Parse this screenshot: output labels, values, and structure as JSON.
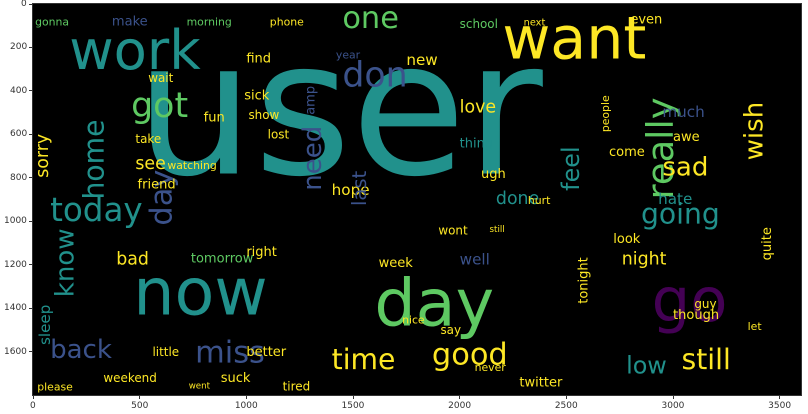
{
  "image": {
    "description_type": "matplotlib word cloud",
    "background": "#000000",
    "palette": [
      "#440154",
      "#3b528b",
      "#21918c",
      "#5ec962",
      "#fde725"
    ]
  },
  "axes": {
    "x_ticks": [
      "0",
      "500",
      "1000",
      "1500",
      "2000",
      "2500",
      "3000",
      "3500"
    ],
    "x_range": [
      0,
      3600
    ],
    "y_ticks": [
      "0",
      "200",
      "400",
      "600",
      "800",
      "1000",
      "1200",
      "1400",
      "1600"
    ],
    "y_range": [
      0,
      1800
    ]
  },
  "words": [
    {
      "text": "user",
      "x": 480,
      "y": 780,
      "size": 860,
      "color": "#21918c",
      "rot": 0
    },
    {
      "text": "work",
      "x": 170,
      "y": 300,
      "size": 250,
      "color": "#21918c",
      "rot": 0
    },
    {
      "text": "want",
      "x": 2200,
      "y": 250,
      "size": 270,
      "color": "#fde725",
      "rot": 0
    },
    {
      "text": "now",
      "x": 470,
      "y": 1430,
      "size": 300,
      "color": "#21918c",
      "rot": 0
    },
    {
      "text": "day",
      "x": 1600,
      "y": 1480,
      "size": 300,
      "color": "#5ec962",
      "rot": 0
    },
    {
      "text": "go",
      "x": 2900,
      "y": 1460,
      "size": 280,
      "color": "#440154",
      "rot": 0
    },
    {
      "text": "good",
      "x": 1870,
      "y": 1660,
      "size": 140,
      "color": "#fde725",
      "rot": 0
    },
    {
      "text": "time",
      "x": 1400,
      "y": 1680,
      "size": 130,
      "color": "#fde725",
      "rot": 0
    },
    {
      "text": "miss",
      "x": 760,
      "y": 1650,
      "size": 140,
      "color": "#3b528b",
      "rot": 0
    },
    {
      "text": "back",
      "x": 80,
      "y": 1630,
      "size": 120,
      "color": "#3b528b",
      "rot": 0
    },
    {
      "text": "still",
      "x": 3040,
      "y": 1680,
      "size": 130,
      "color": "#fde725",
      "rot": 0
    },
    {
      "text": "low",
      "x": 2780,
      "y": 1700,
      "size": 110,
      "color": "#21918c",
      "rot": 0
    },
    {
      "text": "one",
      "x": 1450,
      "y": 110,
      "size": 140,
      "color": "#5ec962",
      "rot": 0
    },
    {
      "text": "don",
      "x": 1450,
      "y": 380,
      "size": 160,
      "color": "#3b528b",
      "rot": 0
    },
    {
      "text": "got",
      "x": 460,
      "y": 520,
      "size": 160,
      "color": "#5ec962",
      "rot": 0
    },
    {
      "text": "home",
      "x": 330,
      "y": 900,
      "size": 130,
      "color": "#21918c",
      "rot": -90
    },
    {
      "text": "today",
      "x": 80,
      "y": 1000,
      "size": 150,
      "color": "#21918c",
      "rot": 0
    },
    {
      "text": "day",
      "x": 650,
      "y": 1020,
      "size": 140,
      "color": "#3b528b",
      "rot": -90
    },
    {
      "text": "really",
      "x": 3000,
      "y": 900,
      "size": 170,
      "color": "#5ec962",
      "rot": -90
    },
    {
      "text": "sad",
      "x": 2950,
      "y": 790,
      "size": 120,
      "color": "#fde725",
      "rot": 0
    },
    {
      "text": "going",
      "x": 2850,
      "y": 1010,
      "size": 130,
      "color": "#21918c",
      "rot": 0
    },
    {
      "text": "wish",
      "x": 3420,
      "y": 720,
      "size": 120,
      "color": "#fde725",
      "rot": -90
    },
    {
      "text": "feel",
      "x": 2560,
      "y": 860,
      "size": 110,
      "color": "#21918c",
      "rot": -90
    },
    {
      "text": "know",
      "x": 190,
      "y": 1350,
      "size": 120,
      "color": "#21918c",
      "rot": -90
    },
    {
      "text": "need",
      "x": 1350,
      "y": 860,
      "size": 120,
      "color": "#3b528b",
      "rot": -90
    },
    {
      "text": "bad",
      "x": 390,
      "y": 1200,
      "size": 80,
      "color": "#fde725",
      "rot": 0
    },
    {
      "text": "tomorrow",
      "x": 740,
      "y": 1190,
      "size": 60,
      "color": "#5ec962",
      "rot": 0
    },
    {
      "text": "night",
      "x": 2760,
      "y": 1200,
      "size": 80,
      "color": "#fde725",
      "rot": 0
    },
    {
      "text": "well",
      "x": 2000,
      "y": 1200,
      "size": 70,
      "color": "#3b528b",
      "rot": 0
    },
    {
      "text": "see",
      "x": 480,
      "y": 760,
      "size": 80,
      "color": "#fde725",
      "rot": 0
    },
    {
      "text": "love",
      "x": 2000,
      "y": 500,
      "size": 80,
      "color": "#fde725",
      "rot": 0
    },
    {
      "text": "much",
      "x": 2950,
      "y": 520,
      "size": 70,
      "color": "#3b528b",
      "rot": 0
    },
    {
      "text": "done",
      "x": 2170,
      "y": 920,
      "size": 80,
      "color": "#21918c",
      "rot": 0
    },
    {
      "text": "hate",
      "x": 2930,
      "y": 920,
      "size": 70,
      "color": "#21918c",
      "rot": 0
    },
    {
      "text": "hope",
      "x": 1400,
      "y": 880,
      "size": 70,
      "color": "#fde725",
      "rot": 0
    },
    {
      "text": "sorry",
      "x": 70,
      "y": 800,
      "size": 80,
      "color": "#fde725",
      "rot": -90
    },
    {
      "text": "sleep",
      "x": 80,
      "y": 1570,
      "size": 70,
      "color": "#21918c",
      "rot": -90
    },
    {
      "text": "friend",
      "x": 490,
      "y": 850,
      "size": 60,
      "color": "#fde725",
      "rot": 0
    },
    {
      "text": "thing",
      "x": 2000,
      "y": 660,
      "size": 60,
      "color": "#21918c",
      "rot": 0
    },
    {
      "text": "last",
      "x": 1560,
      "y": 930,
      "size": 90,
      "color": "#3b528b",
      "rot": -90
    },
    {
      "text": "make",
      "x": 370,
      "y": 100,
      "size": 60,
      "color": "#3b528b",
      "rot": 0
    },
    {
      "text": "morning",
      "x": 720,
      "y": 100,
      "size": 50,
      "color": "#5ec962",
      "rot": 0
    },
    {
      "text": "phone",
      "x": 1110,
      "y": 100,
      "size": 50,
      "color": "#fde725",
      "rot": 0
    },
    {
      "text": "school",
      "x": 2000,
      "y": 110,
      "size": 55,
      "color": "#5ec962",
      "rot": 0
    },
    {
      "text": "next",
      "x": 2300,
      "y": 100,
      "size": 45,
      "color": "#fde725",
      "rot": 0
    },
    {
      "text": "even",
      "x": 2800,
      "y": 90,
      "size": 60,
      "color": "#fde725",
      "rot": 0
    },
    {
      "text": "gonna",
      "x": 10,
      "y": 100,
      "size": 50,
      "color": "#5ec962",
      "rot": 0
    },
    {
      "text": "new",
      "x": 1750,
      "y": 280,
      "size": 70,
      "color": "#fde725",
      "rot": 0
    },
    {
      "text": "year",
      "x": 1420,
      "y": 250,
      "size": 50,
      "color": "#3b528b",
      "rot": 0
    },
    {
      "text": "find",
      "x": 1000,
      "y": 270,
      "size": 60,
      "color": "#fde725",
      "rot": 0
    },
    {
      "text": "sick",
      "x": 990,
      "y": 440,
      "size": 60,
      "color": "#fde725",
      "rot": 0
    },
    {
      "text": "wait",
      "x": 540,
      "y": 360,
      "size": 55,
      "color": "#fde725",
      "rot": 0
    },
    {
      "text": "fun",
      "x": 800,
      "y": 540,
      "size": 60,
      "color": "#fde725",
      "rot": 0
    },
    {
      "text": "show",
      "x": 1010,
      "y": 530,
      "size": 55,
      "color": "#fde725",
      "rot": 0
    },
    {
      "text": "lost",
      "x": 1100,
      "y": 620,
      "size": 55,
      "color": "#fde725",
      "rot": 0
    },
    {
      "text": "watching",
      "x": 630,
      "y": 760,
      "size": 50,
      "color": "#fde725",
      "rot": 0
    },
    {
      "text": "take",
      "x": 480,
      "y": 640,
      "size": 55,
      "color": "#fde725",
      "rot": 0
    },
    {
      "text": "ugh",
      "x": 2100,
      "y": 800,
      "size": 60,
      "color": "#fde725",
      "rot": 0
    },
    {
      "text": "come",
      "x": 2700,
      "y": 700,
      "size": 60,
      "color": "#fde725",
      "rot": 0
    },
    {
      "text": "people",
      "x": 2700,
      "y": 590,
      "size": 50,
      "color": "#fde725",
      "rot": -90
    },
    {
      "text": "awe",
      "x": 3000,
      "y": 630,
      "size": 60,
      "color": "#fde725",
      "rot": 0
    },
    {
      "text": "look",
      "x": 2720,
      "y": 1100,
      "size": 60,
      "color": "#fde725",
      "rot": 0
    },
    {
      "text": "wont",
      "x": 1900,
      "y": 1060,
      "size": 55,
      "color": "#fde725",
      "rot": 0
    },
    {
      "text": "week",
      "x": 1620,
      "y": 1210,
      "size": 60,
      "color": "#fde725",
      "rot": 0
    },
    {
      "text": "hurt",
      "x": 2320,
      "y": 920,
      "size": 50,
      "color": "#fde725",
      "rot": 0
    },
    {
      "text": "tonight",
      "x": 2600,
      "y": 1380,
      "size": 60,
      "color": "#fde725",
      "rot": -90
    },
    {
      "text": "though",
      "x": 3000,
      "y": 1450,
      "size": 60,
      "color": "#fde725",
      "rot": 0
    },
    {
      "text": "guy",
      "x": 3100,
      "y": 1400,
      "size": 55,
      "color": "#fde725",
      "rot": 0
    },
    {
      "text": "better",
      "x": 1000,
      "y": 1620,
      "size": 60,
      "color": "#fde725",
      "rot": 0
    },
    {
      "text": "little",
      "x": 560,
      "y": 1620,
      "size": 55,
      "color": "#fde725",
      "rot": 0
    },
    {
      "text": "weekend",
      "x": 330,
      "y": 1740,
      "size": 55,
      "color": "#fde725",
      "rot": 0
    },
    {
      "text": "suck",
      "x": 880,
      "y": 1740,
      "size": 60,
      "color": "#fde725",
      "rot": 0
    },
    {
      "text": "twitter",
      "x": 2280,
      "y": 1760,
      "size": 60,
      "color": "#fde725",
      "rot": 0
    },
    {
      "text": "please",
      "x": 20,
      "y": 1780,
      "size": 50,
      "color": "#fde725",
      "rot": 0
    },
    {
      "text": "went",
      "x": 730,
      "y": 1770,
      "size": 40,
      "color": "#fde725",
      "rot": 0
    },
    {
      "text": "tired",
      "x": 1170,
      "y": 1780,
      "size": 55,
      "color": "#fde725",
      "rot": 0
    },
    {
      "text": "never",
      "x": 2070,
      "y": 1690,
      "size": 50,
      "color": "#fde725",
      "rot": 0
    },
    {
      "text": "say",
      "x": 1910,
      "y": 1520,
      "size": 55,
      "color": "#fde725",
      "rot": 0
    },
    {
      "text": "nice",
      "x": 1730,
      "y": 1470,
      "size": 50,
      "color": "#fde725",
      "rot": 0
    },
    {
      "text": "let",
      "x": 3350,
      "y": 1500,
      "size": 50,
      "color": "#fde725",
      "rot": 0
    },
    {
      "text": "right",
      "x": 1000,
      "y": 1160,
      "size": 60,
      "color": "#fde725",
      "rot": 0
    },
    {
      "text": "quite",
      "x": 3460,
      "y": 1180,
      "size": 60,
      "color": "#fde725",
      "rot": -90
    },
    {
      "text": "amp",
      "x": 1320,
      "y": 510,
      "size": 60,
      "color": "#3b528b",
      "rot": -90
    },
    {
      "text": "still",
      "x": 2140,
      "y": 1050,
      "size": 40,
      "color": "#fde725",
      "rot": 0
    }
  ]
}
